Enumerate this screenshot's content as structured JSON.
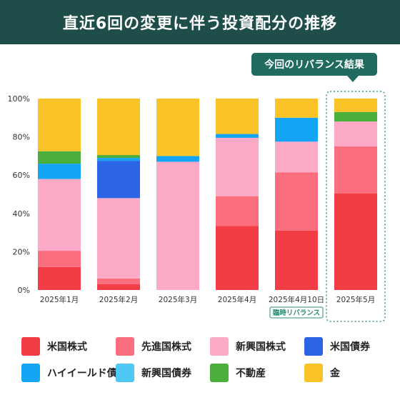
{
  "header": {
    "title": "直近6回の変更に伴う投資配分の推移"
  },
  "callout": {
    "label": "今回のリバランス結果"
  },
  "chart_data": {
    "type": "bar",
    "stacked": true,
    "categories": [
      "2025年1月",
      "2025年2月",
      "2025年3月",
      "2025年4月",
      "2025年4月10日",
      "2025年5月"
    ],
    "category_note": {
      "index": 4,
      "label": "臨時リバランス"
    },
    "highlight_index": 5,
    "ylim": [
      0,
      100
    ],
    "yticks": [
      "0%",
      "20%",
      "40%",
      "60%",
      "80%",
      "100%"
    ],
    "grid": false,
    "legend_position": "bottom",
    "series": [
      {
        "name": "米国株式",
        "color": "#f23c46",
        "values": [
          12,
          3,
          0,
          33.5,
          31,
          50.5
        ]
      },
      {
        "name": "先進国株式",
        "color": "#fa6e7d",
        "values": [
          8.5,
          3,
          0,
          15.5,
          30.5,
          24.5
        ]
      },
      {
        "name": "新興国株式",
        "color": "#fdaac8",
        "values": [
          37.5,
          42,
          67,
          30.5,
          16,
          13
        ]
      },
      {
        "name": "米国債券",
        "color": "#2c64e6",
        "values": [
          0,
          19.5,
          0,
          0,
          0,
          0
        ]
      },
      {
        "name": "ハイイールド債券",
        "color": "#14a5f5",
        "values": [
          8,
          1.5,
          3,
          2,
          12.5,
          0
        ]
      },
      {
        "name": "新興国債券",
        "color": "#50c8f5",
        "values": [
          0,
          0,
          0,
          0,
          0,
          0
        ]
      },
      {
        "name": "不動産",
        "color": "#4baf3c",
        "values": [
          6.5,
          1.5,
          0,
          0,
          0,
          5
        ]
      },
      {
        "name": "金",
        "color": "#fac328",
        "values": [
          27.5,
          29.5,
          30,
          18.5,
          10,
          7
        ]
      }
    ]
  }
}
